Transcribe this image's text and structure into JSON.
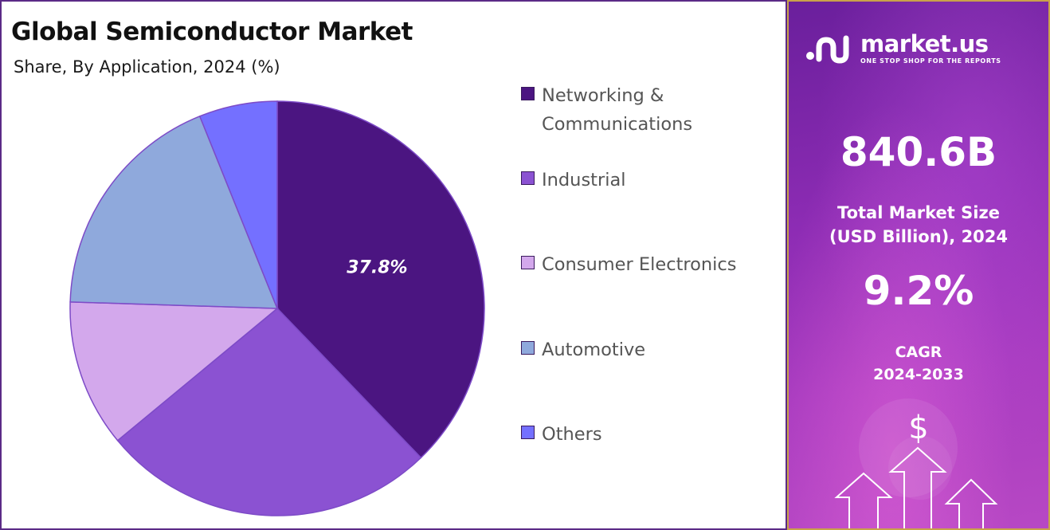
{
  "title": "Global Semiconductor Market",
  "subtitle": "Share, By Application, 2024 (%)",
  "chart_data": {
    "type": "pie",
    "title": "Global Semiconductor Market",
    "subtitle": "Share, By Application, 2024 (%)",
    "legend_position": "right",
    "categories": [
      "Networking & Communications",
      "Industrial",
      "Consumer Electronics",
      "Automotive",
      "Others"
    ],
    "values": [
      37.8,
      26.2,
      11.5,
      18.4,
      6.1
    ],
    "colors": [
      "#4b1581",
      "#8b52d2",
      "#d3a8ec",
      "#8fa9dc",
      "#7470ff"
    ],
    "data_labels": [
      "37.8%",
      "",
      "",
      "",
      ""
    ],
    "start_angle_deg": 0,
    "direction": "clockwise",
    "explicit_label_indices": [
      0
    ]
  },
  "sidebar": {
    "brand_name": "market.us",
    "brand_tagline": "ONE STOP SHOP FOR THE REPORTS",
    "market_size_value": "840.6B",
    "market_size_label_line1": "Total Market Size",
    "market_size_label_line2": "(USD Billion), 2024",
    "cagr_value": "9.2%",
    "cagr_label_line1": "CAGR",
    "cagr_label_line2": "2024-2033",
    "currency_symbol": "$"
  }
}
